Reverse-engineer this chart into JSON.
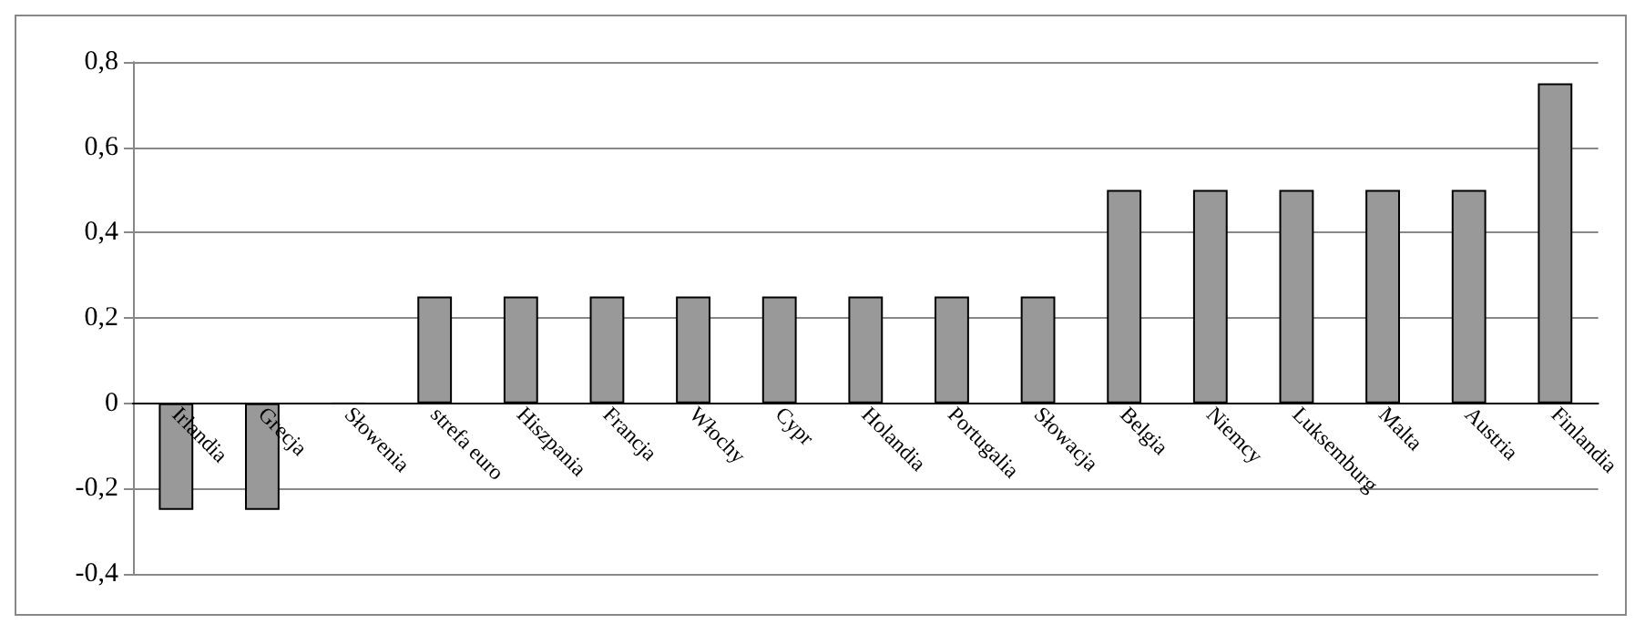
{
  "chart_data": {
    "type": "bar",
    "categories": [
      "Irlandia",
      "Grecja",
      "Słowenia",
      "strefa euro",
      "Hiszpania",
      "Francja",
      "Włochy",
      "Cypr",
      "Holandia",
      "Portugalia",
      "Słowacja",
      "Belgia",
      "Niemcy",
      "Luksemburg",
      "Malta",
      "Austria",
      "Finlandia"
    ],
    "values": [
      -0.25,
      -0.25,
      0,
      0.25,
      0.25,
      0.25,
      0.25,
      0.25,
      0.25,
      0.25,
      0.25,
      0.5,
      0.5,
      0.5,
      0.5,
      0.5,
      0.75
    ],
    "color": "#999999",
    "ylim": [
      -0.4,
      0.8
    ],
    "yticks": [
      {
        "value": -0.4,
        "label": "-0,4"
      },
      {
        "value": -0.2,
        "label": "-0,2"
      },
      {
        "value": 0,
        "label": "0"
      },
      {
        "value": 0.2,
        "label": "0,2"
      },
      {
        "value": 0.4,
        "label": "0,4"
      },
      {
        "value": 0.6,
        "label": "0,6"
      },
      {
        "value": 0.8,
        "label": "0,8"
      }
    ],
    "grid": "y"
  }
}
